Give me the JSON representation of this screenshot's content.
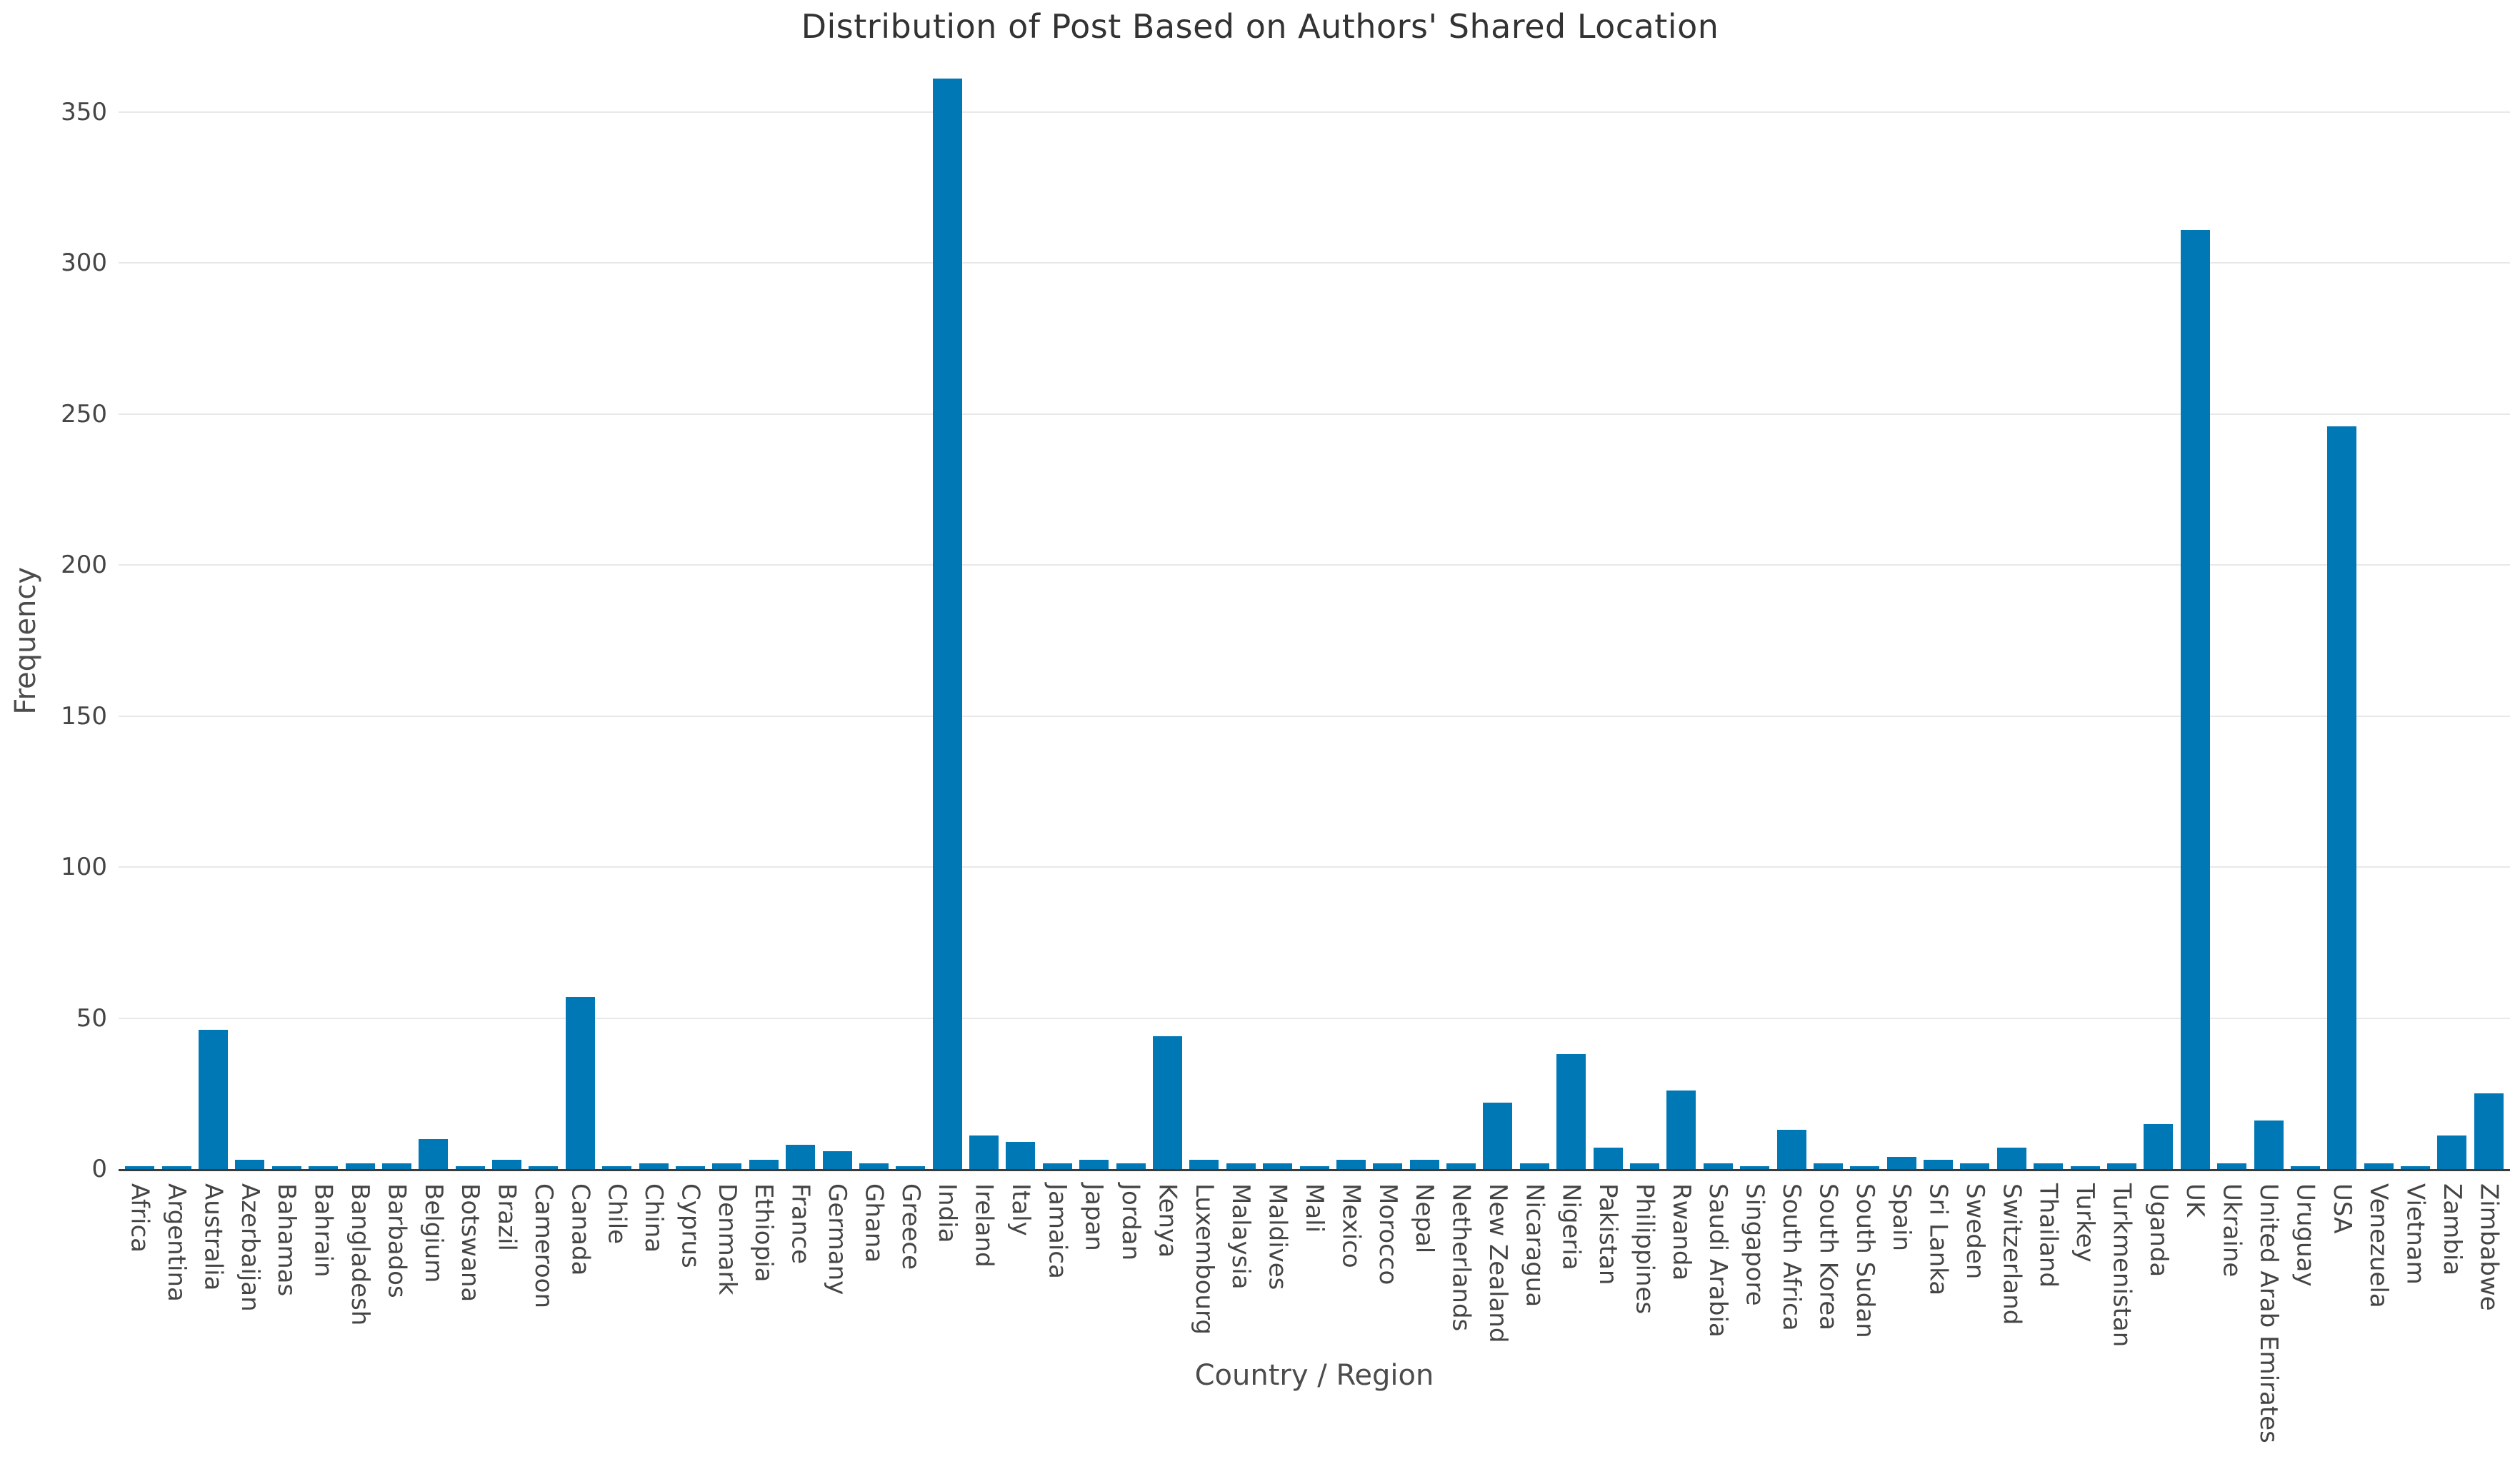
{
  "chart_data": {
    "type": "bar",
    "title": "Distribution of Post Based on Authors' Shared Location",
    "xlabel": "Country / Region",
    "ylabel": "Frequency",
    "bar_color": "#0078b6",
    "axis_line_color": "#3b3b3b",
    "gridline_color": "#e8e8e8",
    "tick_label_color": "#454545",
    "grid": "horizontal",
    "legend": "none",
    "ylim": [
      0,
      370
    ],
    "yticks": [
      0,
      50,
      100,
      150,
      200,
      250,
      300,
      350
    ],
    "categories": [
      "Africa",
      "Argentina",
      "Australia",
      "Azerbaijan",
      "Bahamas",
      "Bahrain",
      "Bangladesh",
      "Barbados",
      "Belgium",
      "Botswana",
      "Brazil",
      "Cameroon",
      "Canada",
      "Chile",
      "China",
      "Cyprus",
      "Denmark",
      "Ethiopia",
      "France",
      "Germany",
      "Ghana",
      "Greece",
      "India",
      "Ireland",
      "Italy",
      "Jamaica",
      "Japan",
      "Jordan",
      "Kenya",
      "Luxembourg",
      "Malaysia",
      "Maldives",
      "Mali",
      "Mexico",
      "Morocco",
      "Nepal",
      "Netherlands",
      "New Zealand",
      "Nicaragua",
      "Nigeria",
      "Pakistan",
      "Philippines",
      "Rwanda",
      "Saudi Arabia",
      "Singapore",
      "South Africa",
      "South Korea",
      "South Sudan",
      "Spain",
      "Sri Lanka",
      "Sweden",
      "Switzerland",
      "Thailand",
      "Turkey",
      "Turkmenistan",
      "Uganda",
      "UK",
      "Ukraine",
      "United Arab Emirates",
      "Uruguay",
      "USA",
      "Venezuela",
      "Vietnam",
      "Zambia",
      "Zimbabwe"
    ],
    "values": [
      1,
      1,
      46,
      3,
      1,
      1,
      2,
      2,
      10,
      1,
      3,
      1,
      57,
      1,
      2,
      1,
      2,
      3,
      8,
      6,
      2,
      1,
      361,
      11,
      9,
      2,
      3,
      2,
      44,
      3,
      2,
      2,
      1,
      3,
      2,
      3,
      2,
      22,
      2,
      38,
      7,
      2,
      26,
      2,
      1,
      13,
      2,
      1,
      4,
      3,
      2,
      7,
      2,
      1,
      2,
      15,
      311,
      2,
      16,
      1,
      246,
      2,
      1,
      11,
      25
    ]
  }
}
